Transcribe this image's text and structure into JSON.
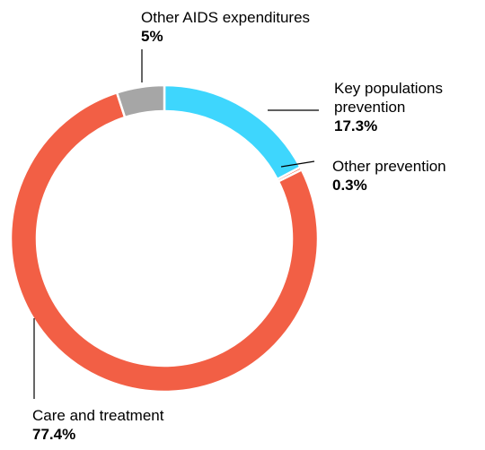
{
  "chart_data": {
    "type": "pie",
    "variant": "donut",
    "legend": "none",
    "slices": [
      {
        "label": "Key populations prevention",
        "label_lines": [
          "Key populations",
          "prevention"
        ],
        "value": 17.3,
        "value_label": "17.3%",
        "color": "#3ed6fd"
      },
      {
        "label": "Other prevention",
        "label_lines": [
          "Other prevention"
        ],
        "value": 0.3,
        "value_label": "0.3%",
        "color": "#f25f45"
      },
      {
        "label": "Care and treatment",
        "label_lines": [
          "Care and treatment"
        ],
        "value": 77.4,
        "value_label": "77.4%",
        "color": "#f25f45"
      },
      {
        "label": "Other AIDS expenditures",
        "label_lines": [
          "Other AIDS expenditures"
        ],
        "value": 5,
        "value_label": "5%",
        "color": "#a6a6a6"
      }
    ]
  }
}
